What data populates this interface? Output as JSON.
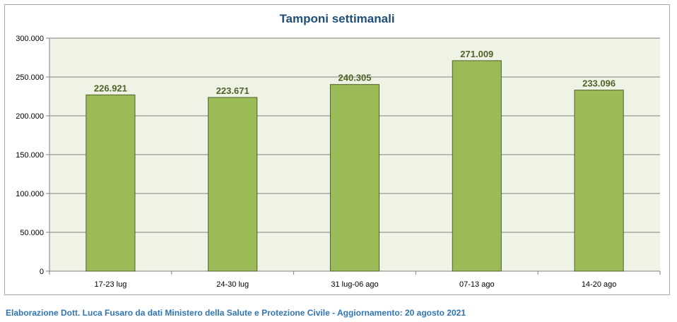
{
  "chart_data": {
    "type": "bar",
    "title": "Tamponi settimanali",
    "categories": [
      "17-23 lug",
      "24-30 lug",
      "31 lug-06 ago",
      "07-13 ago",
      "14-20 ago"
    ],
    "values": [
      226921,
      223671,
      240305,
      271009,
      233096
    ],
    "value_labels": [
      "226.921",
      "223.671",
      "240.305",
      "271.009",
      "233.096"
    ],
    "y_ticks": [
      0,
      50000,
      100000,
      150000,
      200000,
      250000,
      300000
    ],
    "y_tick_labels": [
      "0",
      "50.000",
      "100.000",
      "150.000",
      "200.000",
      "250.000",
      "300.000"
    ],
    "ylim": [
      0,
      300000
    ],
    "xlabel": "",
    "ylabel": "",
    "grid": true,
    "legend": "none",
    "colors": {
      "bar_fill": "#9bbb59",
      "bar_stroke": "#4f6228",
      "plot_background": "#eef3e6",
      "gridline": "#808080",
      "title": "#1f4e79",
      "data_label": "#4f6228"
    }
  },
  "caption": "Elaborazione Dott. Luca Fusaro da dati Ministero della Salute e Protezione Civile - Aggiornamento: 20 agosto 2021"
}
